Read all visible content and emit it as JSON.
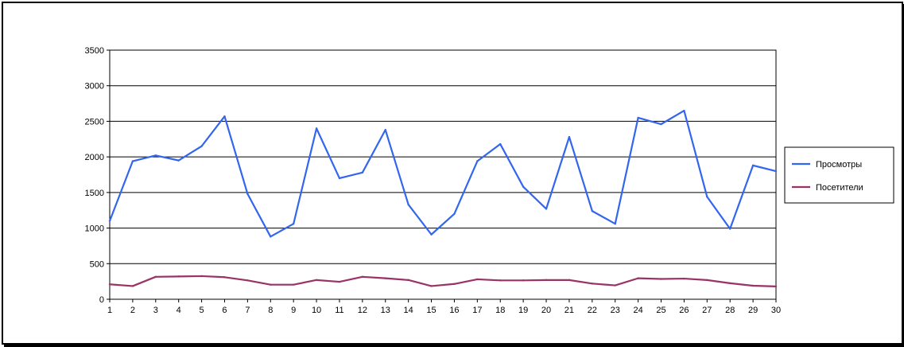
{
  "chart_data": {
    "type": "line",
    "x": [
      1,
      2,
      3,
      4,
      5,
      6,
      7,
      8,
      9,
      10,
      11,
      12,
      13,
      14,
      15,
      16,
      17,
      18,
      19,
      20,
      21,
      22,
      23,
      24,
      25,
      26,
      27,
      28,
      29,
      30
    ],
    "xlabels": [
      "1",
      "2",
      "3",
      "4",
      "5",
      "6",
      "7",
      "8",
      "9",
      "10",
      "11",
      "12",
      "13",
      "14",
      "15",
      "16",
      "17",
      "18",
      "19",
      "20",
      "21",
      "22",
      "23",
      "24",
      "25",
      "26",
      "27",
      "28",
      "29",
      "30"
    ],
    "ylim": [
      0,
      3500
    ],
    "yticks": [
      0,
      500,
      1000,
      1500,
      2000,
      2500,
      3000,
      3500
    ],
    "ytick_labels": [
      "0",
      "500",
      "1000",
      "1500",
      "2000",
      "2500",
      "3000",
      "3500"
    ],
    "grid": "horizontal",
    "legend": "right",
    "series": [
      {
        "name": "Просмотры",
        "color": "#3366ee",
        "values": [
          1100,
          1940,
          2020,
          1950,
          2150,
          2570,
          1480,
          880,
          1060,
          2400,
          1700,
          1780,
          2380,
          1330,
          910,
          1200,
          1940,
          2180,
          1580,
          1270,
          2280,
          1240,
          1060,
          2550,
          2460,
          2650,
          1440,
          990,
          1880,
          1800
        ]
      },
      {
        "name": "Посетители",
        "color": "#993366",
        "values": [
          210,
          185,
          315,
          320,
          325,
          310,
          265,
          205,
          205,
          270,
          245,
          315,
          295,
          270,
          185,
          215,
          280,
          265,
          265,
          270,
          270,
          220,
          195,
          295,
          285,
          290,
          270,
          225,
          190,
          180
        ]
      }
    ]
  }
}
